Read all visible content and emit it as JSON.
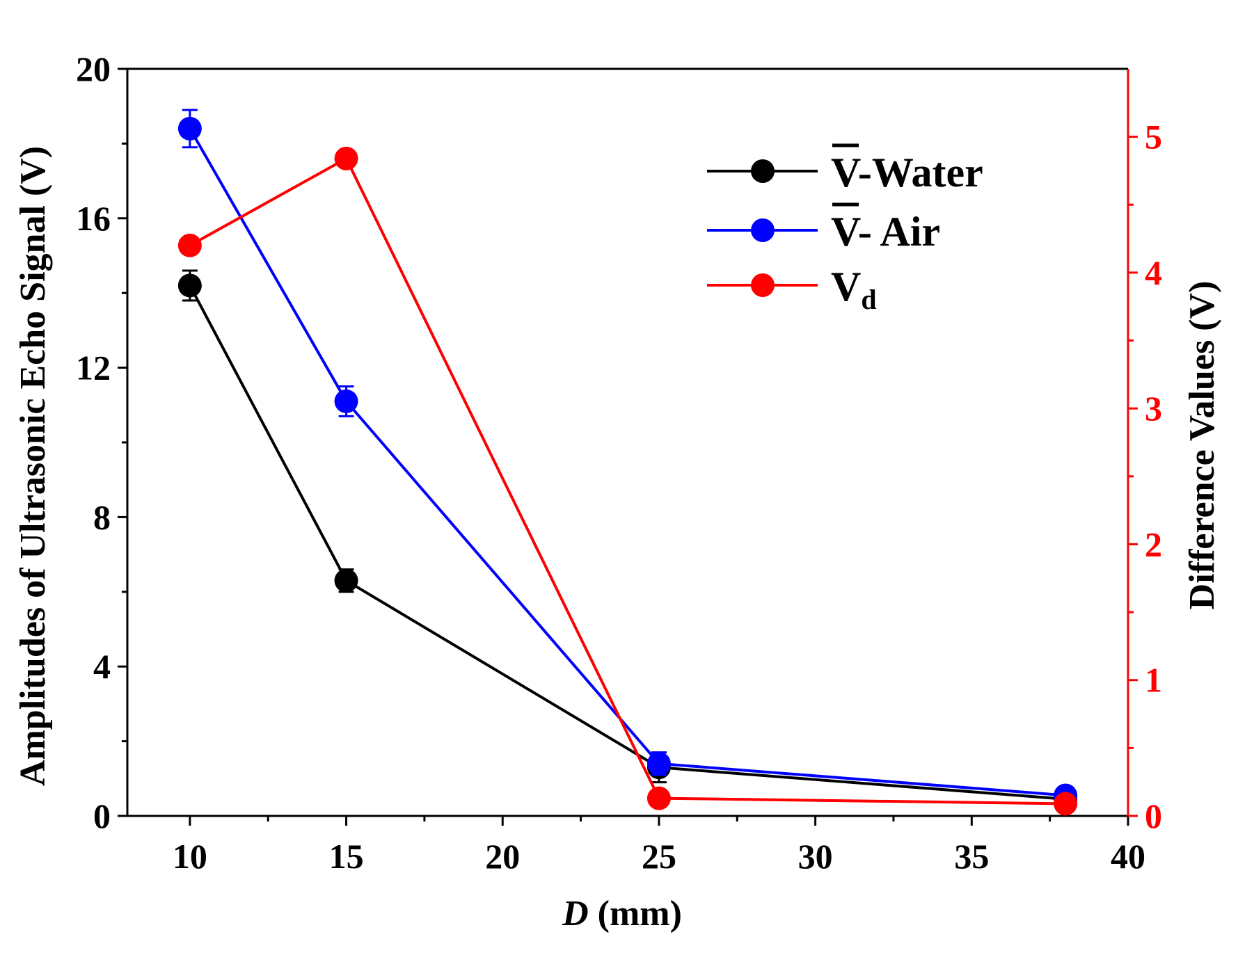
{
  "chart_data": {
    "type": "line",
    "xlabel_italic": "D",
    "xlabel_rest": " (mm)",
    "ylabel_left": "Amplitudes of Ultrasonic Echo Signal (V)",
    "ylabel_right": "Difference Values (V)",
    "xlim": [
      8,
      40
    ],
    "ylim_left": [
      0,
      20
    ],
    "ylim_right": [
      0,
      5.5
    ],
    "x_ticks": [
      10,
      15,
      20,
      25,
      30,
      35,
      40
    ],
    "y_ticks_left": [
      0,
      4,
      8,
      12,
      16,
      20
    ],
    "y_ticks_right": [
      0,
      1,
      2,
      3,
      4,
      5
    ],
    "series": [
      {
        "name": "V-Water",
        "legend_main": "V",
        "legend_rest": "-Water",
        "overline": true,
        "axis": "left",
        "color": "#000000",
        "x": [
          10,
          15,
          25,
          38
        ],
        "values": [
          14.2,
          6.3,
          1.3,
          0.45
        ],
        "errors": [
          0.4,
          0.3,
          0.4,
          0.15
        ]
      },
      {
        "name": "V- Air",
        "legend_main": "V",
        "legend_rest": "- Air",
        "overline": true,
        "axis": "left",
        "color": "#0000ff",
        "x": [
          10,
          15,
          25,
          38
        ],
        "values": [
          18.4,
          11.1,
          1.4,
          0.55
        ],
        "errors": [
          0.5,
          0.4,
          0.3,
          0.15
        ]
      },
      {
        "name": "Vd",
        "legend_main": "V",
        "legend_sub": "d",
        "overline": false,
        "axis": "right",
        "color": "#ff0000",
        "x": [
          10,
          15,
          25,
          38
        ],
        "values": [
          4.2,
          4.84,
          0.13,
          0.09
        ],
        "errors": [
          0,
          0,
          0,
          0
        ]
      }
    ]
  }
}
